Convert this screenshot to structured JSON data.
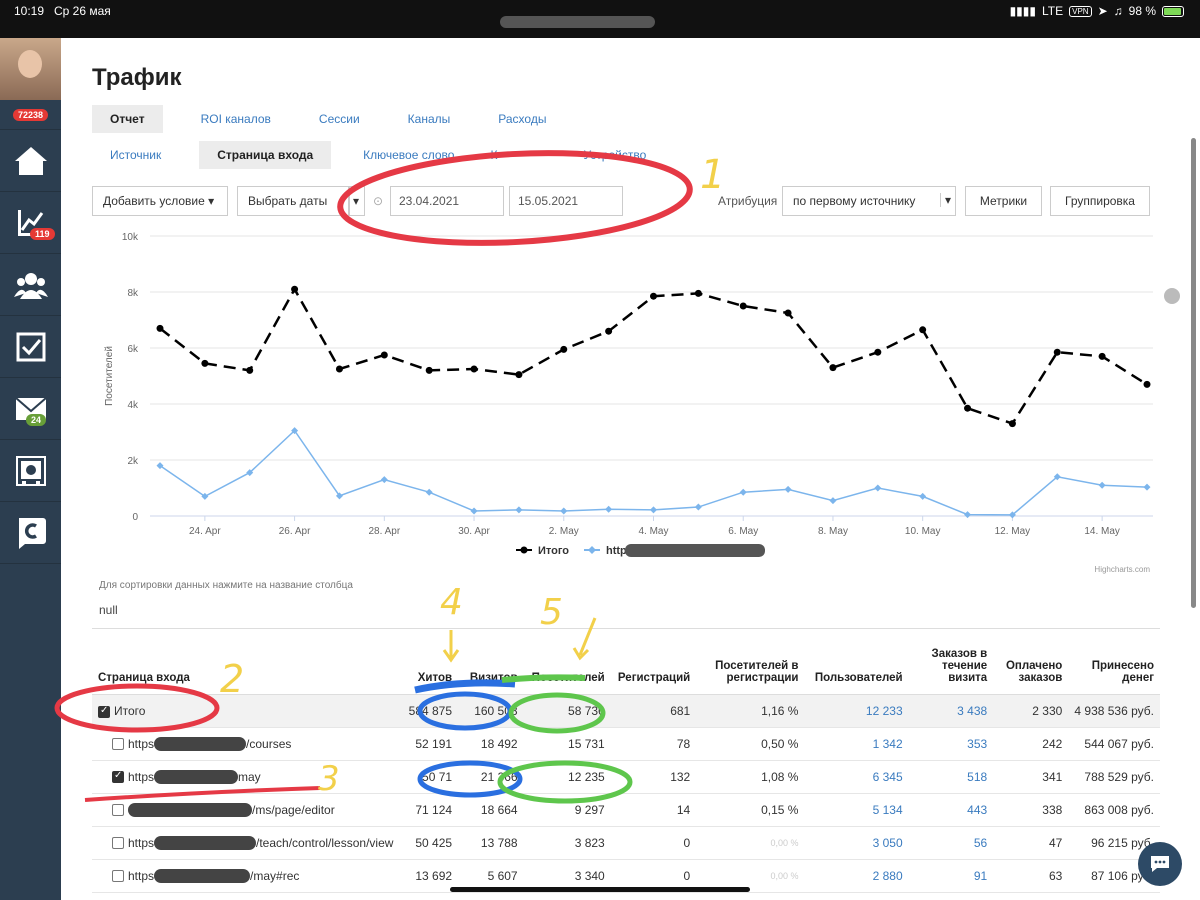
{
  "status_bar": {
    "time": "10:19",
    "date": "Ср 26 мая",
    "network": "LTE",
    "vpn": "VPN",
    "battery": "98 %"
  },
  "sidebar": {
    "top_badge": "72238",
    "items": [
      {
        "icon": "home-icon"
      },
      {
        "icon": "chart-icon",
        "badge": "119"
      },
      {
        "icon": "users-icon"
      },
      {
        "icon": "checkbox-icon"
      },
      {
        "icon": "mail-icon",
        "badge": "24"
      },
      {
        "icon": "safe-icon"
      },
      {
        "icon": "brand-c-icon"
      }
    ]
  },
  "page_title": "Трафик",
  "tabs_primary": [
    "Отчет",
    "ROI каналов",
    "Сессии",
    "Каналы",
    "Расходы"
  ],
  "tabs_secondary": [
    "Источник",
    "Страница входа",
    "Ключевое слово",
    "К",
    "Устройство"
  ],
  "filters": {
    "add_condition": "Добавить условие",
    "select_dates": "Выбрать даты",
    "date_from": "23.04.2021",
    "date_to": "15.05.2021",
    "attribution_label": "Атрибуция",
    "attribution_value": "по первому источнику",
    "metrics": "Метрики",
    "grouping": "Группировка"
  },
  "chart_data": {
    "type": "line",
    "ylabel": "Посетителей",
    "ylim": [
      0,
      10000
    ],
    "yticks": [
      "0",
      "2k",
      "4k",
      "6k",
      "8k",
      "10k"
    ],
    "x": [
      "23 Apr",
      "24 Apr",
      "25 Apr",
      "26 Apr",
      "27 Apr",
      "28 Apr",
      "29 Apr",
      "30 Apr",
      "1 May",
      "2 May",
      "3 May",
      "4 May",
      "5 May",
      "6 May",
      "7 May",
      "8 May",
      "9 May",
      "10 May",
      "11 May",
      "12 May",
      "13 May",
      "14 May",
      "15 May"
    ],
    "xtick_labels": [
      "24. Apr",
      "26. Apr",
      "28. Apr",
      "30. Apr",
      "2. May",
      "4. May",
      "6. May",
      "8. May",
      "10. May",
      "12. May",
      "14. May"
    ],
    "series": [
      {
        "name": "Итого",
        "color": "#000000",
        "dashed": true,
        "values": [
          6700,
          5450,
          5200,
          8100,
          5250,
          5750,
          5200,
          5250,
          5050,
          5950,
          6600,
          7850,
          7950,
          7500,
          7250,
          5300,
          5850,
          6650,
          3850,
          3300,
          5850,
          5700,
          4700
        ]
      },
      {
        "name": "https",
        "color": "#7cb5ec",
        "dashed": false,
        "values": [
          1800,
          700,
          1550,
          3050,
          720,
          1300,
          850,
          180,
          220,
          180,
          240,
          220,
          320,
          850,
          950,
          550,
          1000,
          700,
          50,
          40,
          1400,
          1100,
          1030
        ]
      }
    ],
    "credit": "Highcharts.com"
  },
  "sort_hint": "Для сортировки данных нажмите на название столбца",
  "null_text": "null",
  "table": {
    "headers": [
      "Страница входа",
      "Хитов",
      "Визитов",
      "Посетителей",
      "Регистраций",
      "Посетителей в регистрации",
      "Пользователей",
      "Заказов в течение визита",
      "Оплачено заказов",
      "Принесено денег"
    ],
    "rows": [
      {
        "total": true,
        "checked": true,
        "page": "Итого",
        "hits": "584 875",
        "visits": "160 508",
        "visitors": "58 736",
        "reg": "681",
        "conv": "1,16 %",
        "users": "12 233",
        "orders": "3 438",
        "paid": "2 330",
        "money": "4 938 536 руб."
      },
      {
        "checked": false,
        "page_prefix": "https",
        "page_suffix": "/courses",
        "hits": "52 191",
        "visits": "18 492",
        "visitors": "15 731",
        "reg": "78",
        "conv": "0,50 %",
        "users": "1 342",
        "orders": "353",
        "paid": "242",
        "money": "544 067 руб."
      },
      {
        "checked": true,
        "page_prefix": "https",
        "page_suffix": "may",
        "hits": "50 71",
        "visits": "21 366",
        "visitors": "12 235",
        "reg": "132",
        "conv": "1,08 %",
        "users": "6 345",
        "orders": "518",
        "paid": "341",
        "money": "788 529 руб."
      },
      {
        "checked": false,
        "page_prefix": "",
        "page_suffix": "/ms/page/editor",
        "hits": "71 124",
        "visits": "18 664",
        "visitors": "9 297",
        "reg": "14",
        "conv": "0,15 %",
        "users": "5 134",
        "orders": "443",
        "paid": "338",
        "money": "863 008 руб."
      },
      {
        "checked": false,
        "page_prefix": "https",
        "page_suffix": "/teach/control/lesson/view",
        "hits": "50 425",
        "visits": "13 788",
        "visitors": "3 823",
        "reg": "0",
        "conv": "0,00 %",
        "users": "3 050",
        "orders": "56",
        "paid": "47",
        "money": "96 215 руб."
      },
      {
        "checked": false,
        "page_prefix": "https",
        "page_suffix": "/may#rec",
        "hits": "13 692",
        "visits": "5 607",
        "visitors": "3 340",
        "reg": "0",
        "conv": "0,00 %",
        "users": "2 880",
        "orders": "91",
        "paid": "63",
        "money": "87 106 руб."
      }
    ]
  },
  "annotation_numbers": [
    "1",
    "2",
    "3",
    "4",
    "5"
  ]
}
